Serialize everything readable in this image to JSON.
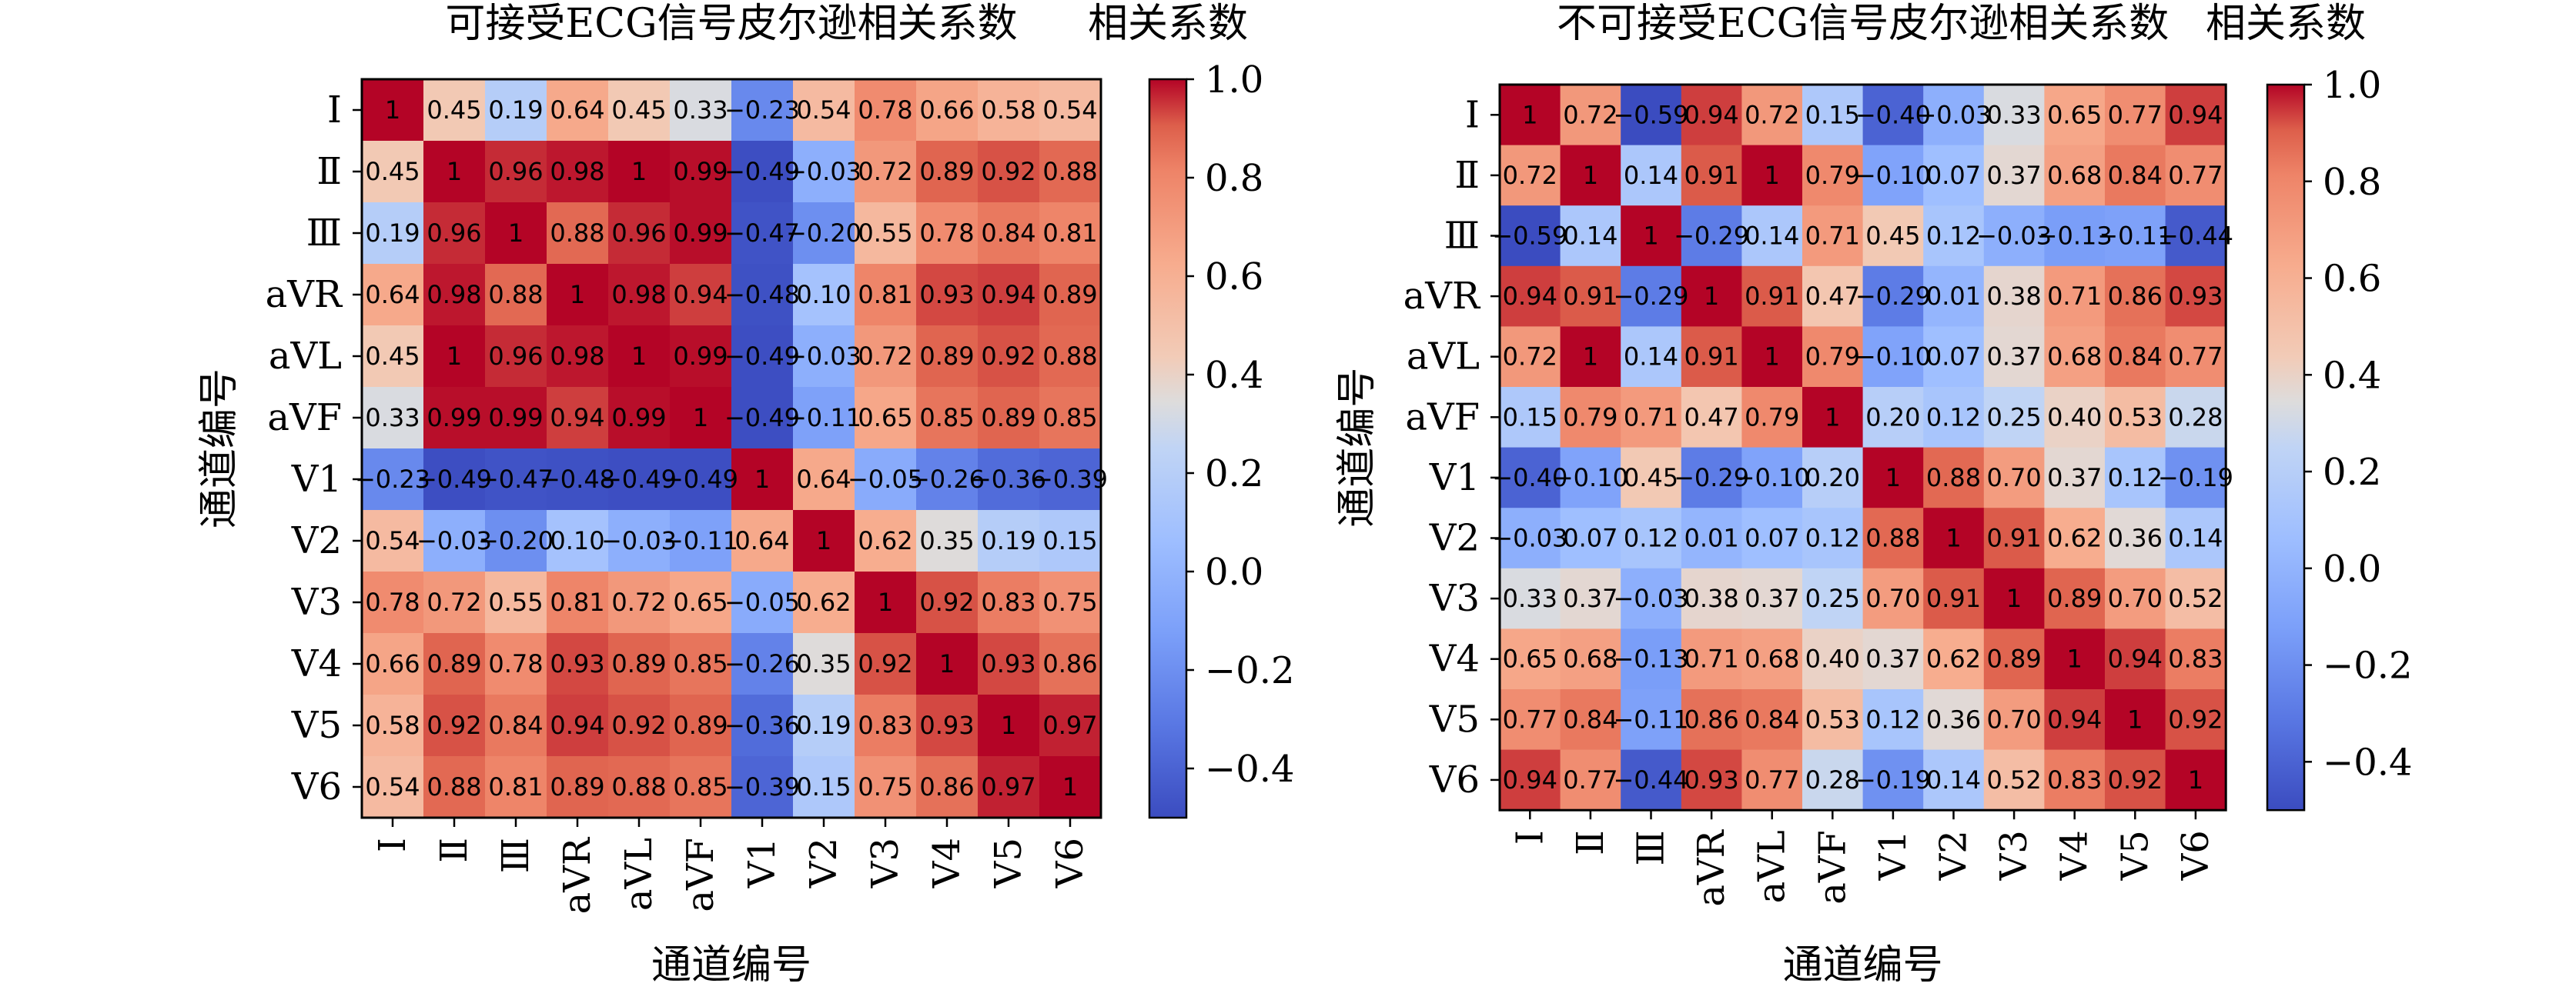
{
  "chart_data": [
    {
      "type": "heatmap",
      "title": "可接受ECG信号皮尔逊相关系数",
      "xlabel": "通道编号",
      "ylabel": "通道编号",
      "colorbar_label": "相关系数",
      "colorbar_ticks": [
        "1.0",
        "0.8",
        "0.6",
        "0.4",
        "0.2",
        "0.0",
        "−0.2",
        "−0.4"
      ],
      "clim": [
        -0.5,
        1.0
      ],
      "rows": [
        "Ⅰ",
        "Ⅱ",
        "Ⅲ",
        "aVR",
        "aVL",
        "aVF",
        "V1",
        "V2",
        "V3",
        "V4",
        "V5",
        "V6"
      ],
      "cols": [
        "Ⅰ",
        "Ⅱ",
        "Ⅲ",
        "aVR",
        "aVL",
        "aVF",
        "V1",
        "V2",
        "V3",
        "V4",
        "V5",
        "V6"
      ],
      "values": [
        [
          1,
          0.45,
          0.19,
          0.64,
          0.45,
          0.33,
          -0.23,
          0.54,
          0.78,
          0.66,
          0.58,
          0.54
        ],
        [
          0.45,
          1,
          0.96,
          0.98,
          1,
          0.99,
          -0.49,
          -0.03,
          0.72,
          0.89,
          0.92,
          0.88
        ],
        [
          0.19,
          0.96,
          1,
          0.88,
          0.96,
          0.99,
          -0.47,
          -0.2,
          0.55,
          0.78,
          0.84,
          0.81
        ],
        [
          0.64,
          0.98,
          0.88,
          1,
          0.98,
          0.94,
          -0.48,
          0.1,
          0.81,
          0.93,
          0.94,
          0.89
        ],
        [
          0.45,
          1,
          0.96,
          0.98,
          1,
          0.99,
          -0.49,
          -0.03,
          0.72,
          0.89,
          0.92,
          0.88
        ],
        [
          0.33,
          0.99,
          0.99,
          0.94,
          0.99,
          1,
          -0.49,
          -0.11,
          0.65,
          0.85,
          0.89,
          0.85
        ],
        [
          -0.23,
          -0.49,
          -0.47,
          -0.48,
          -0.49,
          -0.49,
          1,
          0.64,
          -0.05,
          -0.26,
          -0.36,
          -0.39
        ],
        [
          0.54,
          -0.03,
          -0.2,
          0.1,
          -0.03,
          -0.11,
          0.64,
          1,
          0.62,
          0.35,
          0.19,
          0.15
        ],
        [
          0.78,
          0.72,
          0.55,
          0.81,
          0.72,
          0.65,
          -0.05,
          0.62,
          1,
          0.92,
          0.83,
          0.75
        ],
        [
          0.66,
          0.89,
          0.78,
          0.93,
          0.89,
          0.85,
          -0.26,
          0.35,
          0.92,
          1,
          0.93,
          0.86
        ],
        [
          0.58,
          0.92,
          0.84,
          0.94,
          0.92,
          0.89,
          -0.36,
          0.19,
          0.83,
          0.93,
          1,
          0.97
        ],
        [
          0.54,
          0.88,
          0.81,
          0.89,
          0.88,
          0.85,
          -0.39,
          0.15,
          0.75,
          0.86,
          0.97,
          1
        ]
      ],
      "value_labels": [
        [
          "1",
          "0.45",
          "0.19",
          "0.64",
          "0.45",
          "0.33",
          "−0.23",
          "0.54",
          "0.78",
          "0.66",
          "0.58",
          "0.54"
        ],
        [
          "0.45",
          "1",
          "0.96",
          "0.98",
          "1",
          "0.99",
          "−0.49",
          "−0.03",
          "0.72",
          "0.89",
          "0.92",
          "0.88"
        ],
        [
          "0.19",
          "0.96",
          "1",
          "0.88",
          "0.96",
          "0.99",
          "−0.47",
          "−0.20",
          "0.55",
          "0.78",
          "0.84",
          "0.81"
        ],
        [
          "0.64",
          "0.98",
          "0.88",
          "1",
          "0.98",
          "0.94",
          "−0.48",
          "0.10",
          "0.81",
          "0.93",
          "0.94",
          "0.89"
        ],
        [
          "0.45",
          "1",
          "0.96",
          "0.98",
          "1",
          "0.99",
          "−0.49",
          "−0.03",
          "0.72",
          "0.89",
          "0.92",
          "0.88"
        ],
        [
          "0.33",
          "0.99",
          "0.99",
          "0.94",
          "0.99",
          "1",
          "−0.49",
          "−0.11",
          "0.65",
          "0.85",
          "0.89",
          "0.85"
        ],
        [
          "−0.23",
          "−0.49",
          "−0.47",
          "−0.48",
          "−0.49",
          "−0.49",
          "1",
          "0.64",
          "−0.05",
          "−0.26",
          "−0.36",
          "−0.39"
        ],
        [
          "0.54",
          "−0.03",
          "−0.20",
          "0.10",
          "−0.03",
          "−0.11",
          "0.64",
          "1",
          "0.62",
          "0.35",
          "0.19",
          "0.15"
        ],
        [
          "0.78",
          "0.72",
          "0.55",
          "0.81",
          "0.72",
          "0.65",
          "−0.05",
          "0.62",
          "1",
          "0.92",
          "0.83",
          "0.75"
        ],
        [
          "0.66",
          "0.89",
          "0.78",
          "0.93",
          "0.89",
          "0.85",
          "−0.26",
          "0.35",
          "0.92",
          "1",
          "0.93",
          "0.86"
        ],
        [
          "0.58",
          "0.92",
          "0.84",
          "0.94",
          "0.92",
          "0.89",
          "−0.36",
          "0.19",
          "0.83",
          "0.93",
          "1",
          "0.97"
        ],
        [
          "0.54",
          "0.88",
          "0.81",
          "0.89",
          "0.88",
          "0.85",
          "−0.39",
          "0.15",
          "0.75",
          "0.86",
          "0.97",
          "1"
        ]
      ]
    },
    {
      "type": "heatmap",
      "title": "不可接受ECG信号皮尔逊相关系数",
      "xlabel": "通道编号",
      "ylabel": "通道编号",
      "colorbar_label": "相关系数",
      "colorbar_ticks": [
        "1.0",
        "0.8",
        "0.6",
        "0.4",
        "0.2",
        "0.0",
        "−0.2",
        "−0.4"
      ],
      "clim": [
        -0.5,
        1.0
      ],
      "rows": [
        "Ⅰ",
        "Ⅱ",
        "Ⅲ",
        "aVR",
        "aVL",
        "aVF",
        "V1",
        "V2",
        "V3",
        "V4",
        "V5",
        "V6"
      ],
      "cols": [
        "Ⅰ",
        "Ⅱ",
        "Ⅲ",
        "aVR",
        "aVL",
        "aVF",
        "V1",
        "V2",
        "V3",
        "V4",
        "V5",
        "V6"
      ],
      "values": [
        [
          1,
          0.72,
          -0.59,
          0.94,
          0.72,
          0.15,
          -0.4,
          -0.03,
          0.33,
          0.65,
          0.77,
          0.94
        ],
        [
          0.72,
          1,
          0.14,
          0.91,
          1,
          0.79,
          -0.1,
          0.07,
          0.37,
          0.68,
          0.84,
          0.77
        ],
        [
          -0.59,
          0.14,
          1,
          -0.29,
          0.14,
          0.71,
          0.45,
          0.12,
          -0.03,
          -0.13,
          -0.11,
          -0.44
        ],
        [
          0.94,
          0.91,
          -0.29,
          1,
          0.91,
          0.47,
          -0.29,
          0.01,
          0.38,
          0.71,
          0.86,
          0.93
        ],
        [
          0.72,
          1,
          0.14,
          0.91,
          1,
          0.79,
          -0.1,
          0.07,
          0.37,
          0.68,
          0.84,
          0.77
        ],
        [
          0.15,
          0.79,
          0.71,
          0.47,
          0.79,
          1,
          0.2,
          0.12,
          0.25,
          0.4,
          0.53,
          0.28
        ],
        [
          -0.4,
          -0.1,
          0.45,
          -0.29,
          -0.1,
          0.2,
          1,
          0.88,
          0.7,
          0.37,
          0.12,
          -0.19
        ],
        [
          -0.03,
          0.07,
          0.12,
          0.01,
          0.07,
          0.12,
          0.88,
          1,
          0.91,
          0.62,
          0.36,
          0.14
        ],
        [
          0.33,
          0.37,
          -0.03,
          0.38,
          0.37,
          0.25,
          0.7,
          0.91,
          1,
          0.89,
          0.7,
          0.52
        ],
        [
          0.65,
          0.68,
          -0.13,
          0.71,
          0.68,
          0.4,
          0.37,
          0.62,
          0.89,
          1,
          0.94,
          0.83
        ],
        [
          0.77,
          0.84,
          -0.11,
          0.86,
          0.84,
          0.53,
          0.12,
          0.36,
          0.7,
          0.94,
          1,
          0.92
        ],
        [
          0.94,
          0.77,
          -0.44,
          0.93,
          0.77,
          0.28,
          -0.19,
          0.14,
          0.52,
          0.83,
          0.92,
          1
        ]
      ],
      "value_labels": [
        [
          "1",
          "0.72",
          "−0.59",
          "0.94",
          "0.72",
          "0.15",
          "−0.40",
          "−0.03",
          "0.33",
          "0.65",
          "0.77",
          "0.94"
        ],
        [
          "0.72",
          "1",
          "0.14",
          "0.91",
          "1",
          "0.79",
          "−0.10",
          "0.07",
          "0.37",
          "0.68",
          "0.84",
          "0.77"
        ],
        [
          "−0.59",
          "0.14",
          "1",
          "−0.29",
          "0.14",
          "0.71",
          "0.45",
          "0.12",
          "−0.03",
          "−0.13",
          "−0.11",
          "−0.44"
        ],
        [
          "0.94",
          "0.91",
          "−0.29",
          "1",
          "0.91",
          "0.47",
          "−0.29",
          "0.01",
          "0.38",
          "0.71",
          "0.86",
          "0.93"
        ],
        [
          "0.72",
          "1",
          "0.14",
          "0.91",
          "1",
          "0.79",
          "−0.10",
          "0.07",
          "0.37",
          "0.68",
          "0.84",
          "0.77"
        ],
        [
          "0.15",
          "0.79",
          "0.71",
          "0.47",
          "0.79",
          "1",
          "0.20",
          "0.12",
          "0.25",
          "0.40",
          "0.53",
          "0.28"
        ],
        [
          "−0.40",
          "−0.10",
          "0.45",
          "−0.29",
          "−0.10",
          "0.20",
          "1",
          "0.88",
          "0.70",
          "0.37",
          "0.12",
          "−0.19"
        ],
        [
          "−0.03",
          "0.07",
          "0.12",
          "0.01",
          "0.07",
          "0.12",
          "0.88",
          "1",
          "0.91",
          "0.62",
          "0.36",
          "0.14"
        ],
        [
          "0.33",
          "0.37",
          "−0.03",
          "0.38",
          "0.37",
          "0.25",
          "0.70",
          "0.91",
          "1",
          "0.89",
          "0.70",
          "0.52"
        ],
        [
          "0.65",
          "0.68",
          "−0.13",
          "0.71",
          "0.68",
          "0.40",
          "0.37",
          "0.62",
          "0.89",
          "1",
          "0.94",
          "0.83"
        ],
        [
          "0.77",
          "0.84",
          "−0.11",
          "0.86",
          "0.84",
          "0.53",
          "0.12",
          "0.36",
          "0.70",
          "0.94",
          "1",
          "0.92"
        ],
        [
          "0.94",
          "0.77",
          "−0.44",
          "0.93",
          "0.77",
          "0.28",
          "−0.19",
          "0.14",
          "0.52",
          "0.83",
          "0.92",
          "1"
        ]
      ]
    }
  ]
}
